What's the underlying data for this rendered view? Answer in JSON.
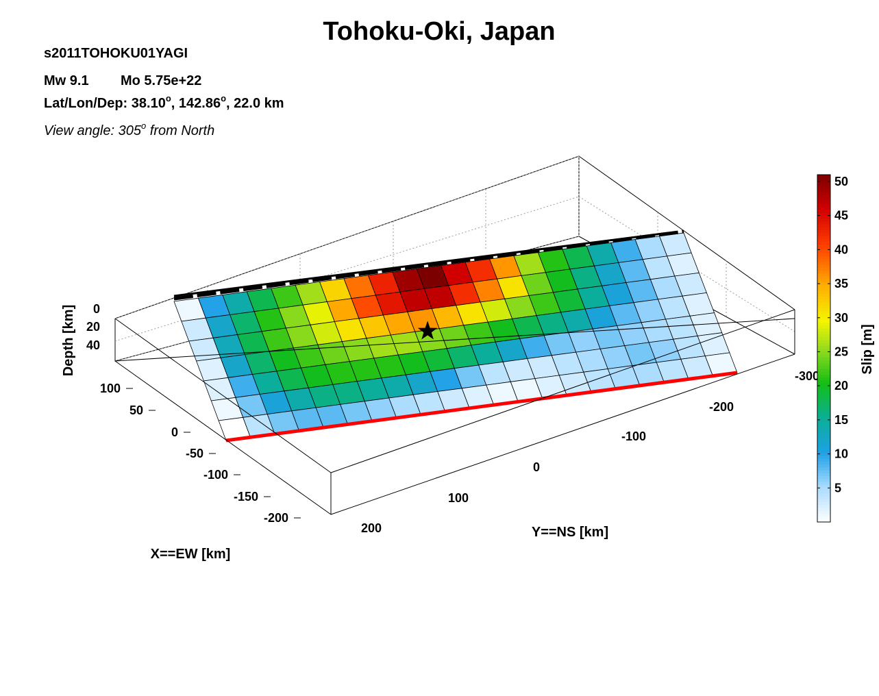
{
  "title": "Tohoku-Oki, Japan",
  "event_id": "s2011TOHOKU01YAGI",
  "magnitude": {
    "mw_label": "Mw 9.1",
    "mo_label": "Mo 5.75e+22"
  },
  "location": {
    "prefix": "Lat/Lon/Dep: ",
    "lat": "38.10",
    "lon": "142.86",
    "dep": "22.0 km",
    "deg": "o",
    "sep": ", "
  },
  "view": {
    "prefix": "View angle: 305",
    "deg": "o",
    "suffix": " from North"
  },
  "colors": {
    "trench_line": "#000000",
    "bottom_edge": "#ff0000",
    "hypocenter": "#000000",
    "box": "#000000",
    "grid": "#999999"
  },
  "chart_data": {
    "type": "heatmap",
    "title": "Tohoku-Oki, Japan",
    "xlabel": "X==EW [km]",
    "ylabel": "Y==NS [km]",
    "zlabel": "Depth [km]",
    "x_ticks": [
      "100",
      "50",
      "0",
      "-50",
      "-100",
      "-150",
      "-200"
    ],
    "y_ticks": [
      "200",
      "100",
      "0",
      "-100",
      "-200",
      "-300"
    ],
    "z_ticks": [
      "0",
      "20",
      "40"
    ],
    "colorbar": {
      "label": "Slip [m]",
      "ticks": [
        "5",
        "10",
        "15",
        "20",
        "25",
        "30",
        "35",
        "40",
        "45",
        "50"
      ],
      "range": [
        0,
        51
      ]
    },
    "hypocenter": {
      "row": 2.55,
      "col": 9.0
    },
    "grid_cols": 21,
    "grid_rows": 7,
    "slip": [
      [
        1,
        10,
        14,
        18,
        22,
        26,
        32,
        38,
        43,
        49,
        51,
        46,
        42,
        36,
        26,
        21,
        18,
        14,
        9,
        5,
        3
      ],
      [
        3,
        12,
        17,
        21,
        25,
        29,
        35,
        40,
        44,
        47,
        47,
        42,
        37,
        31,
        24,
        20,
        16,
        12,
        8,
        4,
        2
      ],
      [
        3,
        13,
        18,
        22,
        25,
        28,
        31,
        33,
        35,
        36,
        34,
        31,
        28,
        25,
        22,
        19,
        15,
        11,
        8,
        5,
        3
      ],
      [
        2,
        12,
        17,
        20,
        22,
        24,
        25,
        26,
        26,
        25,
        24,
        22,
        20,
        18,
        16,
        14,
        11,
        8,
        6,
        4,
        2
      ],
      [
        2,
        9,
        15,
        18,
        20,
        21,
        21,
        21,
        20,
        19,
        17,
        15,
        12,
        9,
        7,
        6,
        7,
        6,
        5,
        4,
        2
      ],
      [
        1,
        7,
        11,
        14,
        16,
        16,
        15,
        14,
        12,
        10,
        7,
        4,
        3,
        3,
        4,
        5,
        6,
        7,
        6,
        4,
        2
      ],
      [
        0,
        4,
        7,
        8,
        8,
        7,
        6,
        5,
        4,
        3,
        2,
        1,
        1,
        2,
        3,
        4,
        5,
        5,
        4,
        3,
        1
      ]
    ]
  }
}
